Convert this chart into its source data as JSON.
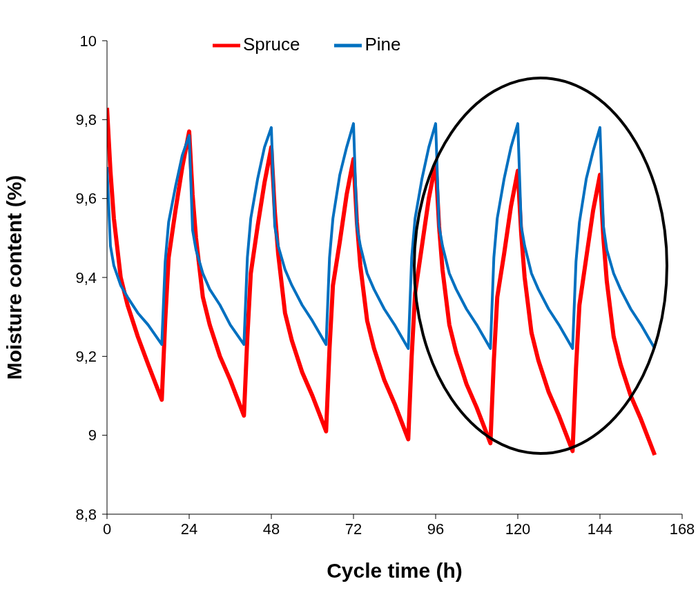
{
  "chart_data": {
    "type": "line",
    "xlabel": "Cycle time (h)",
    "ylabel": "Moisture content (%)",
    "x": [
      0,
      1,
      2,
      4,
      6,
      9,
      12,
      16,
      17,
      18,
      20,
      22,
      24,
      25,
      26,
      28,
      30,
      33,
      36,
      40,
      41,
      42,
      44,
      46,
      48,
      49,
      50,
      52,
      54,
      57,
      60,
      64,
      65,
      66,
      68,
      70,
      72,
      73,
      74,
      76,
      78,
      81,
      84,
      88,
      89,
      90,
      92,
      94,
      96,
      97,
      98,
      100,
      102,
      105,
      108,
      112,
      113,
      114,
      116,
      118,
      120,
      121,
      122,
      124,
      126,
      129,
      132,
      136,
      137,
      138,
      140,
      142,
      144,
      145,
      146,
      148,
      150,
      153,
      156,
      160
    ],
    "series": [
      {
        "name": "Spruce",
        "color": "#ff0000",
        "values": [
          9.83,
          9.67,
          9.55,
          9.4,
          9.33,
          9.25,
          9.18,
          9.09,
          9.29,
          9.45,
          9.57,
          9.68,
          9.77,
          9.61,
          9.5,
          9.35,
          9.28,
          9.2,
          9.14,
          9.05,
          9.25,
          9.41,
          9.53,
          9.64,
          9.73,
          9.57,
          9.46,
          9.31,
          9.24,
          9.16,
          9.1,
          9.01,
          9.22,
          9.38,
          9.49,
          9.61,
          9.7,
          9.54,
          9.43,
          9.29,
          9.22,
          9.14,
          9.08,
          8.99,
          9.2,
          9.36,
          9.48,
          9.6,
          9.69,
          9.53,
          9.42,
          9.28,
          9.21,
          9.13,
          9.07,
          8.98,
          9.19,
          9.35,
          9.46,
          9.58,
          9.67,
          9.51,
          9.4,
          9.26,
          9.19,
          9.11,
          9.05,
          8.96,
          9.17,
          9.33,
          9.45,
          9.57,
          9.66,
          9.5,
          9.39,
          9.25,
          9.18,
          9.1,
          9.04,
          8.95
        ]
      },
      {
        "name": "Pine",
        "color": "#0070c0",
        "values": [
          9.68,
          9.48,
          9.43,
          9.38,
          9.35,
          9.31,
          9.28,
          9.23,
          9.44,
          9.54,
          9.63,
          9.71,
          9.76,
          9.52,
          9.47,
          9.41,
          9.37,
          9.33,
          9.28,
          9.23,
          9.45,
          9.55,
          9.65,
          9.73,
          9.78,
          9.53,
          9.48,
          9.42,
          9.38,
          9.33,
          9.29,
          9.23,
          9.45,
          9.55,
          9.66,
          9.73,
          9.79,
          9.53,
          9.48,
          9.41,
          9.37,
          9.32,
          9.28,
          9.22,
          9.45,
          9.55,
          9.65,
          9.73,
          9.79,
          9.53,
          9.48,
          9.41,
          9.37,
          9.32,
          9.28,
          9.22,
          9.45,
          9.55,
          9.65,
          9.73,
          9.79,
          9.53,
          9.48,
          9.41,
          9.37,
          9.32,
          9.28,
          9.22,
          9.44,
          9.54,
          9.65,
          9.72,
          9.78,
          9.53,
          9.47,
          9.41,
          9.37,
          9.32,
          9.28,
          9.22
        ]
      }
    ],
    "xlim": [
      0,
      168
    ],
    "xticks": [
      0,
      24,
      48,
      72,
      96,
      120,
      144,
      168
    ],
    "ylim": [
      8.8,
      10
    ],
    "yticks": [
      {
        "value": 8.8,
        "label": "8,8"
      },
      9,
      {
        "value": 9.2,
        "label": "9,2"
      },
      {
        "value": 9.4,
        "label": "9,4"
      },
      {
        "value": 9.6,
        "label": "9,6"
      },
      {
        "value": 9.8,
        "label": "9,8"
      },
      10
    ],
    "grid": false,
    "legend": "top",
    "marker": "none",
    "line_style": "solid"
  }
}
